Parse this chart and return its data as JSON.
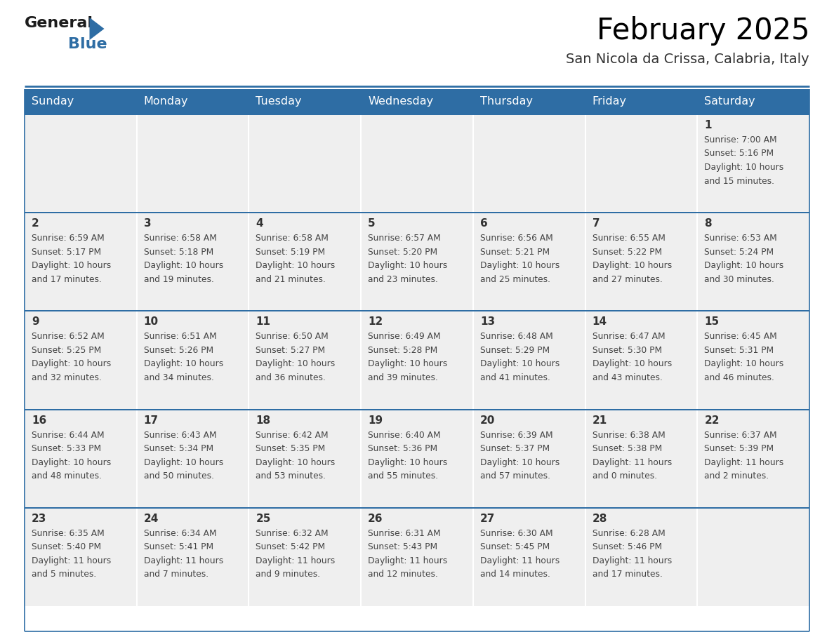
{
  "title": "February 2025",
  "subtitle": "San Nicola da Crissa, Calabria, Italy",
  "days_of_week": [
    "Sunday",
    "Monday",
    "Tuesday",
    "Wednesday",
    "Thursday",
    "Friday",
    "Saturday"
  ],
  "header_bg": "#2E6DA4",
  "header_text": "#FFFFFF",
  "cell_bg": "#EFEFEF",
  "border_color": "#2E6DA4",
  "day_num_color": "#333333",
  "text_color": "#444444",
  "calendar": [
    [
      null,
      null,
      null,
      null,
      null,
      null,
      {
        "day": 1,
        "sunrise": "7:00 AM",
        "sunset": "5:16 PM",
        "daylight": "10 hours",
        "daylight2": "and 15 minutes."
      }
    ],
    [
      {
        "day": 2,
        "sunrise": "6:59 AM",
        "sunset": "5:17 PM",
        "daylight": "10 hours",
        "daylight2": "and 17 minutes."
      },
      {
        "day": 3,
        "sunrise": "6:58 AM",
        "sunset": "5:18 PM",
        "daylight": "10 hours",
        "daylight2": "and 19 minutes."
      },
      {
        "day": 4,
        "sunrise": "6:58 AM",
        "sunset": "5:19 PM",
        "daylight": "10 hours",
        "daylight2": "and 21 minutes."
      },
      {
        "day": 5,
        "sunrise": "6:57 AM",
        "sunset": "5:20 PM",
        "daylight": "10 hours",
        "daylight2": "and 23 minutes."
      },
      {
        "day": 6,
        "sunrise": "6:56 AM",
        "sunset": "5:21 PM",
        "daylight": "10 hours",
        "daylight2": "and 25 minutes."
      },
      {
        "day": 7,
        "sunrise": "6:55 AM",
        "sunset": "5:22 PM",
        "daylight": "10 hours",
        "daylight2": "and 27 minutes."
      },
      {
        "day": 8,
        "sunrise": "6:53 AM",
        "sunset": "5:24 PM",
        "daylight": "10 hours",
        "daylight2": "and 30 minutes."
      }
    ],
    [
      {
        "day": 9,
        "sunrise": "6:52 AM",
        "sunset": "5:25 PM",
        "daylight": "10 hours",
        "daylight2": "and 32 minutes."
      },
      {
        "day": 10,
        "sunrise": "6:51 AM",
        "sunset": "5:26 PM",
        "daylight": "10 hours",
        "daylight2": "and 34 minutes."
      },
      {
        "day": 11,
        "sunrise": "6:50 AM",
        "sunset": "5:27 PM",
        "daylight": "10 hours",
        "daylight2": "and 36 minutes."
      },
      {
        "day": 12,
        "sunrise": "6:49 AM",
        "sunset": "5:28 PM",
        "daylight": "10 hours",
        "daylight2": "and 39 minutes."
      },
      {
        "day": 13,
        "sunrise": "6:48 AM",
        "sunset": "5:29 PM",
        "daylight": "10 hours",
        "daylight2": "and 41 minutes."
      },
      {
        "day": 14,
        "sunrise": "6:47 AM",
        "sunset": "5:30 PM",
        "daylight": "10 hours",
        "daylight2": "and 43 minutes."
      },
      {
        "day": 15,
        "sunrise": "6:45 AM",
        "sunset": "5:31 PM",
        "daylight": "10 hours",
        "daylight2": "and 46 minutes."
      }
    ],
    [
      {
        "day": 16,
        "sunrise": "6:44 AM",
        "sunset": "5:33 PM",
        "daylight": "10 hours",
        "daylight2": "and 48 minutes."
      },
      {
        "day": 17,
        "sunrise": "6:43 AM",
        "sunset": "5:34 PM",
        "daylight": "10 hours",
        "daylight2": "and 50 minutes."
      },
      {
        "day": 18,
        "sunrise": "6:42 AM",
        "sunset": "5:35 PM",
        "daylight": "10 hours",
        "daylight2": "and 53 minutes."
      },
      {
        "day": 19,
        "sunrise": "6:40 AM",
        "sunset": "5:36 PM",
        "daylight": "10 hours",
        "daylight2": "and 55 minutes."
      },
      {
        "day": 20,
        "sunrise": "6:39 AM",
        "sunset": "5:37 PM",
        "daylight": "10 hours",
        "daylight2": "and 57 minutes."
      },
      {
        "day": 21,
        "sunrise": "6:38 AM",
        "sunset": "5:38 PM",
        "daylight": "11 hours",
        "daylight2": "and 0 minutes."
      },
      {
        "day": 22,
        "sunrise": "6:37 AM",
        "sunset": "5:39 PM",
        "daylight": "11 hours",
        "daylight2": "and 2 minutes."
      }
    ],
    [
      {
        "day": 23,
        "sunrise": "6:35 AM",
        "sunset": "5:40 PM",
        "daylight": "11 hours",
        "daylight2": "and 5 minutes."
      },
      {
        "day": 24,
        "sunrise": "6:34 AM",
        "sunset": "5:41 PM",
        "daylight": "11 hours",
        "daylight2": "and 7 minutes."
      },
      {
        "day": 25,
        "sunrise": "6:32 AM",
        "sunset": "5:42 PM",
        "daylight": "11 hours",
        "daylight2": "and 9 minutes."
      },
      {
        "day": 26,
        "sunrise": "6:31 AM",
        "sunset": "5:43 PM",
        "daylight": "11 hours",
        "daylight2": "and 12 minutes."
      },
      {
        "day": 27,
        "sunrise": "6:30 AM",
        "sunset": "5:45 PM",
        "daylight": "11 hours",
        "daylight2": "and 14 minutes."
      },
      {
        "day": 28,
        "sunrise": "6:28 AM",
        "sunset": "5:46 PM",
        "daylight": "11 hours",
        "daylight2": "and 17 minutes."
      },
      null
    ]
  ]
}
